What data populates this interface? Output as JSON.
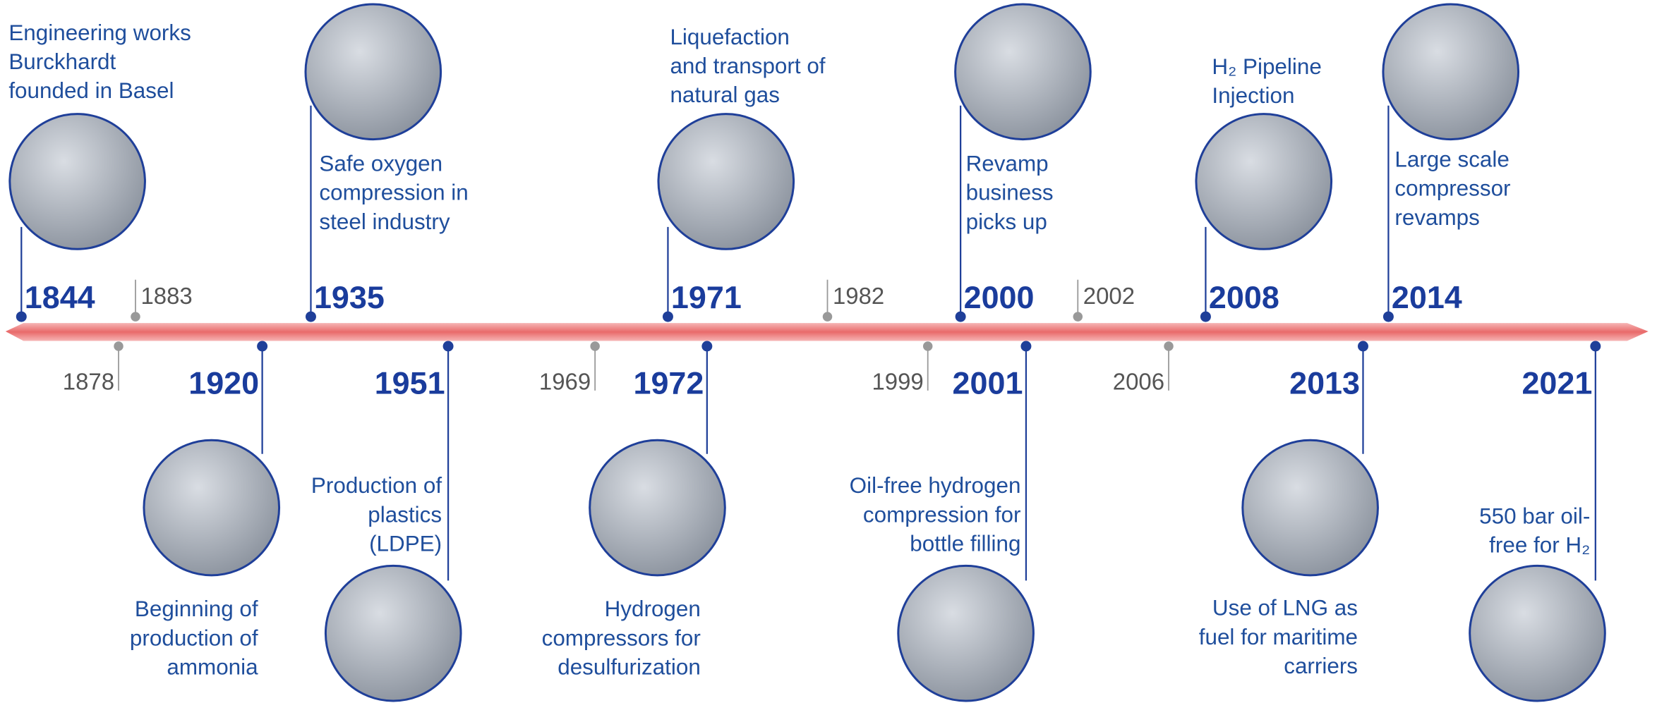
{
  "events": [
    {
      "year": "1844",
      "lines": [
        "Engineering works",
        "Burckhardt",
        "founded in Basel"
      ]
    },
    {
      "year": "1920",
      "lines": [
        "Beginning of",
        "production of",
        "ammonia"
      ]
    },
    {
      "year": "1935",
      "lines": [
        "Safe oxygen",
        "compression in",
        "steel industry"
      ]
    },
    {
      "year": "1951",
      "lines": [
        "Production of",
        "plastics",
        "(LDPE)"
      ]
    },
    {
      "year": "1971",
      "lines": [
        "Liquefaction",
        "and transport of",
        "natural gas"
      ]
    },
    {
      "year": "1972",
      "lines": [
        "Hydrogen",
        "compressors for",
        "desulfurization"
      ]
    },
    {
      "year": "2000",
      "lines": [
        "Revamp",
        "business",
        "picks up"
      ]
    },
    {
      "year": "2001",
      "lines": [
        "Oil-free hydrogen",
        "compression for",
        "bottle filling"
      ]
    },
    {
      "year": "2008",
      "lines": [
        "H₂ Pipeline",
        "Injection"
      ]
    },
    {
      "year": "2013",
      "lines": [
        "Use of LNG as",
        "fuel for maritime",
        "carriers"
      ]
    },
    {
      "year": "2014",
      "lines": [
        "Large scale",
        "compressor",
        "revamps"
      ]
    },
    {
      "year": "2021",
      "lines": [
        "550 bar oil-",
        "free for H₂"
      ]
    }
  ],
  "minor_years": [
    "1878",
    "1883",
    "1969",
    "1982",
    "1999",
    "2002",
    "2006"
  ]
}
